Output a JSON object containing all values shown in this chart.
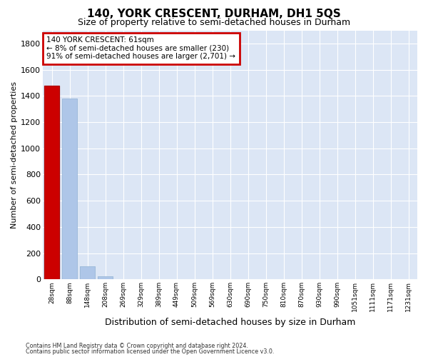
{
  "title": "140, YORK CRESCENT, DURHAM, DH1 5QS",
  "subtitle": "Size of property relative to semi-detached houses in Durham",
  "xlabel": "Distribution of semi-detached houses by size in Durham",
  "ylabel": "Number of semi-detached properties",
  "footnote1": "Contains HM Land Registry data © Crown copyright and database right 2024.",
  "footnote2": "Contains public sector information licensed under the Open Government Licence v3.0.",
  "annotation_line1": "140 YORK CRESCENT: 61sqm",
  "annotation_line2": "← 8% of semi-detached houses are smaller (230)",
  "annotation_line3": "91% of semi-detached houses are larger (2,701) →",
  "bar_labels": [
    "28sqm",
    "88sqm",
    "148sqm",
    "208sqm",
    "269sqm",
    "329sqm",
    "389sqm",
    "449sqm",
    "509sqm",
    "569sqm",
    "630sqm",
    "690sqm",
    "750sqm",
    "810sqm",
    "870sqm",
    "930sqm",
    "990sqm",
    "1051sqm",
    "1111sqm",
    "1171sqm",
    "1231sqm"
  ],
  "bar_values": [
    1480,
    1380,
    100,
    25,
    0,
    0,
    0,
    0,
    0,
    0,
    0,
    0,
    0,
    0,
    0,
    0,
    0,
    0,
    0,
    0,
    0
  ],
  "bar_color": "#aec6e8",
  "bar_edge_color": "#9ab8d8",
  "highlight_bar_index": 0,
  "highlight_color": "#cc0000",
  "highlight_edge_color": "#aa0000",
  "annotation_box_color": "#cc0000",
  "background_color": "#dce6f5",
  "grid_color": "#ffffff",
  "fig_bg_color": "#ffffff",
  "ylim": [
    0,
    1900
  ],
  "yticks": [
    0,
    200,
    400,
    600,
    800,
    1000,
    1200,
    1400,
    1600,
    1800
  ],
  "title_fontsize": 11,
  "subtitle_fontsize": 9,
  "ylabel_fontsize": 8,
  "xlabel_fontsize": 9
}
